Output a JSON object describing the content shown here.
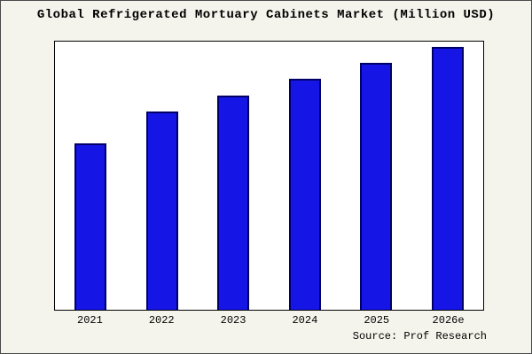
{
  "title": "Global Refrigerated Mortuary Cabinets Market (Million USD)",
  "source": "Source: Prof Research",
  "colors": {
    "background": "#f4f4ec",
    "plot_background": "#ffffff",
    "frame_border": "#4a4a4a",
    "axis_border": "#000000",
    "bar_fill": "#1515e6",
    "bar_edge": "#000066",
    "text": "#000000"
  },
  "chart_data": {
    "type": "bar",
    "title": "Global Refrigerated Mortuary Cabinets Market (Million USD)",
    "categories": [
      "2021",
      "2022",
      "2023",
      "2024",
      "2025",
      "2026e"
    ],
    "values": [
      62,
      74,
      80,
      86,
      92,
      98
    ],
    "xlabel": "",
    "ylabel": "",
    "ylim": [
      0,
      100
    ],
    "grid": false,
    "legend": false,
    "y_axis_labels_visible": false,
    "annotation": "Source: Prof Research"
  }
}
